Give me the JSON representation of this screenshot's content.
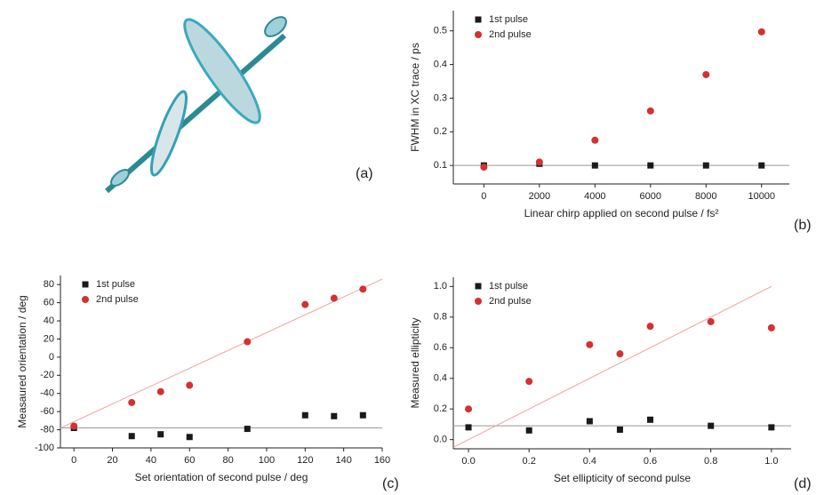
{
  "panel_labels": [
    "(a)",
    "(b)",
    "(c)",
    "(d)"
  ],
  "chart_data": [
    {
      "type": "scatter",
      "y_label": "FWHM in XC trace / ps",
      "x_label": "Linear chirp applied on second pulse / fs²",
      "x": [
        0,
        2000,
        4000,
        6000,
        8000,
        10000
      ],
      "series": [
        {
          "name": "1st pulse",
          "color": "#1a1a1a",
          "marker": "square",
          "values": [
            0.1,
            0.105,
            0.1,
            0.1,
            0.1,
            0.1
          ]
        },
        {
          "name": "2nd pulse",
          "color": "#d63030",
          "marker": "circle",
          "values": [
            0.095,
            0.11,
            0.175,
            0.262,
            0.37,
            0.497
          ]
        }
      ],
      "lines": [
        {
          "color": "#999999",
          "x": [
            -1100,
            11000
          ],
          "y": [
            0.1,
            0.1
          ]
        }
      ],
      "xlim": [
        -1100,
        11000
      ],
      "ylim": [
        0.045,
        0.56
      ],
      "xticks": [
        0,
        2000,
        4000,
        6000,
        8000,
        10000
      ],
      "yticks": [
        0.1,
        0.2,
        0.3,
        0.4,
        0.5
      ],
      "legend": "upper-left"
    },
    {
      "type": "scatter",
      "y_label": "Measaured orientation / deg",
      "x_label": "Set orientation of second pulse / deg",
      "x": [
        0,
        30,
        45,
        60,
        90,
        120,
        135,
        150
      ],
      "series": [
        {
          "name": "1st pulse",
          "color": "#1a1a1a",
          "marker": "square",
          "values": [
            -78,
            -87,
            -85,
            -88,
            -79,
            -64,
            -65,
            -64
          ]
        },
        {
          "name": "2nd pulse",
          "color": "#d63030",
          "marker": "circle",
          "values": [
            -76,
            -50,
            -38,
            -31,
            17,
            58,
            65,
            75
          ]
        }
      ],
      "lines": [
        {
          "color": "#999999",
          "x": [
            -7,
            160
          ],
          "y": [
            -78,
            -78
          ]
        },
        {
          "color": "#f0a0a0",
          "x": [
            -7,
            160
          ],
          "y": [
            -78,
            86
          ]
        }
      ],
      "xlim": [
        -7,
        160
      ],
      "ylim": [
        -100,
        90
      ],
      "xticks": [
        0,
        20,
        40,
        60,
        80,
        100,
        120,
        140,
        160
      ],
      "yticks": [
        -100,
        -80,
        -60,
        -40,
        -20,
        0,
        20,
        40,
        60,
        80
      ],
      "legend": "upper-left"
    },
    {
      "type": "scatter",
      "y_label": "Measured ellipticity",
      "x_label": "Set ellipticity of second pulse",
      "x": [
        0,
        0.2,
        0.4,
        0.5,
        0.6,
        0.8,
        1
      ],
      "series": [
        {
          "name": "1st pulse",
          "color": "#1a1a1a",
          "marker": "square",
          "values": [
            0.08,
            0.06,
            0.12,
            0.065,
            0.13,
            0.09,
            0.08
          ]
        },
        {
          "name": "2nd pulse",
          "color": "#d63030",
          "marker": "circle",
          "values": [
            0.2,
            0.38,
            0.62,
            0.56,
            0.74,
            0.77,
            0.73
          ]
        }
      ],
      "lines": [
        {
          "color": "#999999",
          "x": [
            -0.05,
            1.065
          ],
          "y": [
            0.09,
            0.09
          ]
        },
        {
          "color": "#f0a0a0",
          "x": [
            -0.05,
            1
          ],
          "y": [
            -0.05,
            1
          ]
        }
      ],
      "xlim": [
        -0.05,
        1.065
      ],
      "ylim": [
        -0.06,
        1.06
      ],
      "xticks": [
        {
          "value": 0,
          "label": "0.0"
        },
        0.2,
        0.4,
        0.6,
        0.8,
        {
          "value": 1,
          "label": "1.0"
        }
      ],
      "yticks": [
        {
          "value": 0,
          "label": "0.0"
        },
        0.2,
        0.4,
        0.6,
        0.8,
        {
          "value": 1,
          "label": "1.0"
        }
      ],
      "legend": "upper-left"
    }
  ]
}
